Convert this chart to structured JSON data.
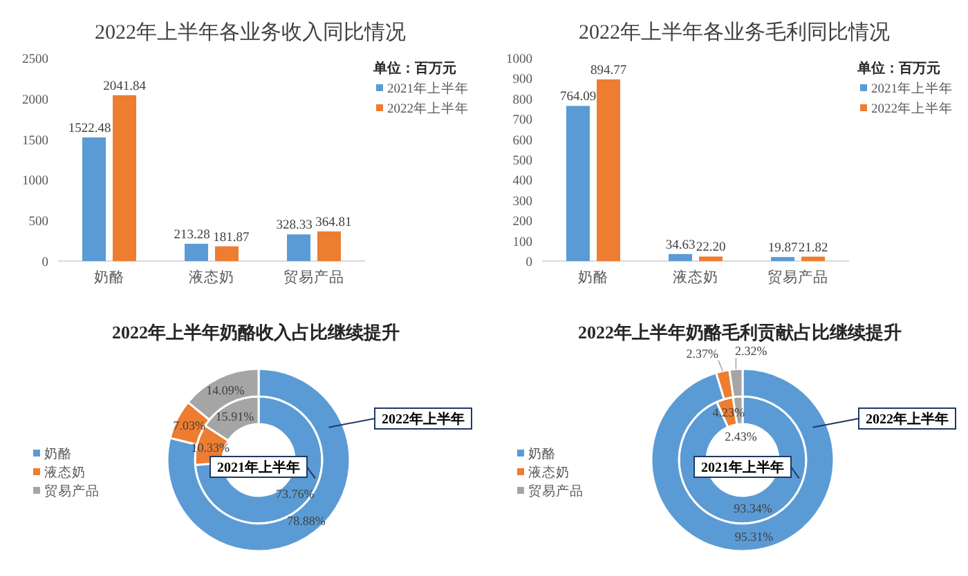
{
  "chart_data": [
    {
      "type": "bar",
      "title": "2022年上半年各业务收入同比情况",
      "categories": [
        "奶酪",
        "液态奶",
        "贸易产品"
      ],
      "series": [
        {
          "name": "2021年上半年",
          "color": "#5b9bd5",
          "values": [
            1522.48,
            213.28,
            328.33
          ],
          "value_labels": [
            "1522.48",
            "213.28",
            "328.33"
          ]
        },
        {
          "name": "2022年上半年",
          "color": "#ed7d31",
          "values": [
            2041.84,
            181.87,
            364.81
          ],
          "value_labels": [
            "2041.84",
            "181.87",
            "364.81"
          ]
        }
      ],
      "ylim": [
        0,
        2500
      ],
      "yticks": [
        0,
        500,
        1000,
        1500,
        2000,
        2500
      ],
      "legend": "top right",
      "legend_title": "单位：百万元"
    },
    {
      "type": "bar",
      "title": "2022年上半年各业务毛利同比情况",
      "categories": [
        "奶酪",
        "液态奶",
        "贸易产品"
      ],
      "series": [
        {
          "name": "2021年上半年",
          "color": "#5b9bd5",
          "values": [
            764.09,
            34.63,
            19.87
          ],
          "value_labels": [
            "764.09",
            "34.63",
            "19.87"
          ]
        },
        {
          "name": "2022年上半年",
          "color": "#ed7d31",
          "values": [
            894.77,
            22.2,
            21.82
          ],
          "value_labels": [
            "894.77",
            "22.20",
            "21.82"
          ]
        }
      ],
      "ylim": [
        0,
        1000
      ],
      "yticks": [
        0,
        100,
        200,
        300,
        400,
        500,
        600,
        700,
        800,
        900,
        1000
      ],
      "legend": "top right",
      "legend_title": "单位：百万元"
    },
    {
      "type": "donut",
      "title": "2022年上半年奶酪收入占比继续提升",
      "categories": [
        "奶酪",
        "液态奶",
        "贸易产品"
      ],
      "colors": [
        "#5b9bd5",
        "#ed7d31",
        "#a5a5a5"
      ],
      "series": [
        {
          "name": "2021年上半年",
          "values": [
            73.76,
            10.33,
            15.91
          ],
          "value_labels": [
            "73.76%",
            "10.33%",
            "15.91%"
          ]
        },
        {
          "name": "2022年上半年",
          "values": [
            78.88,
            7.03,
            14.09
          ],
          "value_labels": [
            "78.88%",
            "7.03%",
            "14.09%"
          ]
        }
      ],
      "legend": "left"
    },
    {
      "type": "donut",
      "title": "2022年上半年奶酪毛利贡献占比继续提升",
      "categories": [
        "奶酪",
        "液态奶",
        "贸易产品"
      ],
      "colors": [
        "#5b9bd5",
        "#ed7d31",
        "#a5a5a5"
      ],
      "series": [
        {
          "name": "2021年上半年",
          "values": [
            93.34,
            4.23,
            2.43
          ],
          "value_labels": [
            "93.34%",
            "4.23%",
            "2.43%"
          ]
        },
        {
          "name": "2022年上半年",
          "values": [
            95.31,
            2.37,
            2.32
          ],
          "value_labels": [
            "95.31%",
            "2.37%",
            "2.32%"
          ]
        }
      ],
      "legend": "left"
    }
  ]
}
